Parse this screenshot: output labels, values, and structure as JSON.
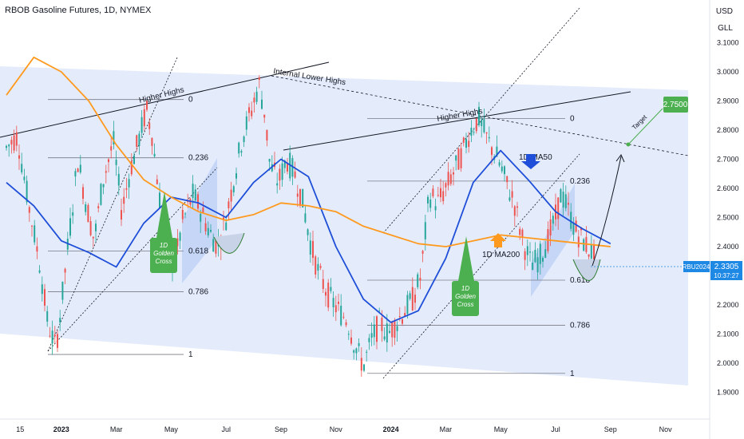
{
  "header": {
    "title": "RBOB Gasoline Futures, 1D, NYMEX",
    "currency": "USD",
    "unit": "GLL"
  },
  "chart_data": {
    "type": "candlestick",
    "y_ticks": [
      1.9,
      2.0,
      2.1,
      2.2,
      2.3,
      2.4,
      2.5,
      2.6,
      2.7,
      2.8,
      2.9,
      3.0,
      3.1
    ],
    "y_tick_labels": [
      "1.9000",
      "2.0000",
      "2.1000",
      "2.2000",
      "2.3000",
      "2.4000",
      "2.5000",
      "2.6000",
      "2.7000",
      "2.8000",
      "2.9000",
      "3.0000",
      "3.1000"
    ],
    "x_ticks": [
      {
        "label": "15",
        "t": 0.5
      },
      {
        "label": "2023",
        "t": 2
      },
      {
        "label": "Mar",
        "t": 4
      },
      {
        "label": "May",
        "t": 6
      },
      {
        "label": "Jul",
        "t": 8
      },
      {
        "label": "Sep",
        "t": 10
      },
      {
        "label": "Nov",
        "t": 12
      },
      {
        "label": "2024",
        "t": 14
      },
      {
        "label": "Mar",
        "t": 16
      },
      {
        "label": "May",
        "t": 18
      },
      {
        "label": "Jul",
        "t": 20
      },
      {
        "label": "Sep",
        "t": 22
      },
      {
        "label": "Nov",
        "t": 24
      }
    ],
    "price_path": [
      [
        0.0,
        2.74
      ],
      [
        0.4,
        2.78
      ],
      [
        0.8,
        2.55
      ],
      [
        1.2,
        2.35
      ],
      [
        1.5,
        2.14
      ],
      [
        1.8,
        2.05
      ],
      [
        2.0,
        2.2
      ],
      [
        2.3,
        2.45
      ],
      [
        2.6,
        2.7
      ],
      [
        2.9,
        2.55
      ],
      [
        3.2,
        2.42
      ],
      [
        3.5,
        2.62
      ],
      [
        3.9,
        2.76
      ],
      [
        4.2,
        2.52
      ],
      [
        4.5,
        2.66
      ],
      [
        4.8,
        2.76
      ],
      [
        5.1,
        2.87
      ],
      [
        5.3,
        2.79
      ],
      [
        5.6,
        2.55
      ],
      [
        5.9,
        2.44
      ],
      [
        6.1,
        2.32
      ],
      [
        6.4,
        2.48
      ],
      [
        6.8,
        2.58
      ],
      [
        7.1,
        2.52
      ],
      [
        7.4,
        2.45
      ],
      [
        7.7,
        2.4
      ],
      [
        8.0,
        2.5
      ],
      [
        8.3,
        2.64
      ],
      [
        8.6,
        2.78
      ],
      [
        8.9,
        2.86
      ],
      [
        9.2,
        2.96
      ],
      [
        9.4,
        2.86
      ],
      [
        9.6,
        2.68
      ],
      [
        9.9,
        2.62
      ],
      [
        10.2,
        2.7
      ],
      [
        10.5,
        2.65
      ],
      [
        10.8,
        2.55
      ],
      [
        11.1,
        2.4
      ],
      [
        11.4,
        2.3
      ],
      [
        11.8,
        2.22
      ],
      [
        12.1,
        2.18
      ],
      [
        12.4,
        2.15
      ],
      [
        12.7,
        2.06
      ],
      [
        13.0,
        1.99
      ],
      [
        13.3,
        2.08
      ],
      [
        13.6,
        2.14
      ],
      [
        13.9,
        2.1
      ],
      [
        14.2,
        2.14
      ],
      [
        14.5,
        2.18
      ],
      [
        14.8,
        2.22
      ],
      [
        15.1,
        2.3
      ],
      [
        15.4,
        2.58
      ],
      [
        15.7,
        2.55
      ],
      [
        16.0,
        2.6
      ],
      [
        16.3,
        2.66
      ],
      [
        16.6,
        2.72
      ],
      [
        16.9,
        2.8
      ],
      [
        17.2,
        2.84
      ],
      [
        17.5,
        2.77
      ],
      [
        17.9,
        2.7
      ],
      [
        18.2,
        2.62
      ],
      [
        18.5,
        2.55
      ],
      [
        18.8,
        2.42
      ],
      [
        19.1,
        2.34
      ],
      [
        19.4,
        2.36
      ],
      [
        19.7,
        2.42
      ],
      [
        20.0,
        2.5
      ],
      [
        20.2,
        2.58
      ],
      [
        20.4,
        2.54
      ],
      [
        20.7,
        2.46
      ],
      [
        21.0,
        2.42
      ],
      [
        21.3,
        2.38
      ],
      [
        21.6,
        2.33
      ]
    ],
    "series": [
      {
        "name": "1D MA50",
        "color": "#1f4fd8",
        "points": [
          [
            0.0,
            2.62
          ],
          [
            1.0,
            2.54
          ],
          [
            2.0,
            2.42
          ],
          [
            3.0,
            2.38
          ],
          [
            4.0,
            2.33
          ],
          [
            5.0,
            2.48
          ],
          [
            6.0,
            2.57
          ],
          [
            7.0,
            2.55
          ],
          [
            8.0,
            2.5
          ],
          [
            9.0,
            2.62
          ],
          [
            10.0,
            2.7
          ],
          [
            11.0,
            2.64
          ],
          [
            12.0,
            2.4
          ],
          [
            13.0,
            2.22
          ],
          [
            14.0,
            2.14
          ],
          [
            15.0,
            2.18
          ],
          [
            16.0,
            2.36
          ],
          [
            17.0,
            2.62
          ],
          [
            18.0,
            2.73
          ],
          [
            19.0,
            2.63
          ],
          [
            20.0,
            2.52
          ],
          [
            21.0,
            2.46
          ],
          [
            22.0,
            2.41
          ]
        ]
      },
      {
        "name": "1D MA200",
        "color": "#ff9a1f",
        "points": [
          [
            0.0,
            2.92
          ],
          [
            1.0,
            3.05
          ],
          [
            2.0,
            3.0
          ],
          [
            3.0,
            2.9
          ],
          [
            4.0,
            2.75
          ],
          [
            5.0,
            2.63
          ],
          [
            6.0,
            2.57
          ],
          [
            7.0,
            2.52
          ],
          [
            8.0,
            2.49
          ],
          [
            9.0,
            2.51
          ],
          [
            10.0,
            2.55
          ],
          [
            11.0,
            2.54
          ],
          [
            12.0,
            2.52
          ],
          [
            13.0,
            2.47
          ],
          [
            14.0,
            2.44
          ],
          [
            15.0,
            2.41
          ],
          [
            16.0,
            2.4
          ],
          [
            17.0,
            2.42
          ],
          [
            18.0,
            2.44
          ],
          [
            19.0,
            2.43
          ],
          [
            20.0,
            2.42
          ],
          [
            21.0,
            2.41
          ],
          [
            22.0,
            2.4
          ]
        ]
      }
    ],
    "last_price": "2.3305",
    "symbol_tag": "RBU2024",
    "countdown": "10:37:27",
    "target_price": "2.7500",
    "fib_left": [
      {
        "level": "0",
        "price": 2.905
      },
      {
        "level": "0.236",
        "price": 2.705
      },
      {
        "level": "0.618",
        "price": 2.385
      },
      {
        "level": "0.786",
        "price": 2.245
      },
      {
        "level": "1",
        "price": 2.03
      }
    ],
    "fib_right": [
      {
        "level": "0",
        "price": 2.84
      },
      {
        "level": "0.236",
        "price": 2.625
      },
      {
        "level": "0.618",
        "price": 2.285
      },
      {
        "level": "0.786",
        "price": 2.13
      },
      {
        "level": "1",
        "price": 1.965
      }
    ],
    "annotations": {
      "higher_highs_left": "Higher Highs",
      "higher_highs_right": "Higher Highs",
      "internal_lower_highs": "Internal Lower Highs",
      "ma50_label": "1D MA50",
      "ma200_label": "1D MA200",
      "golden_cross_left": "1D Golden Cross",
      "golden_cross_right": "1D Golden Cross",
      "target_label": "Target"
    }
  },
  "colors": {
    "ma50": "#1f4fd8",
    "ma200": "#ff9a1f",
    "up": "#26a69a",
    "down": "#ef5350",
    "channel_fill": "#d6e2fb",
    "green_badge": "#4caf50",
    "price_tag": "#1e88e5"
  }
}
